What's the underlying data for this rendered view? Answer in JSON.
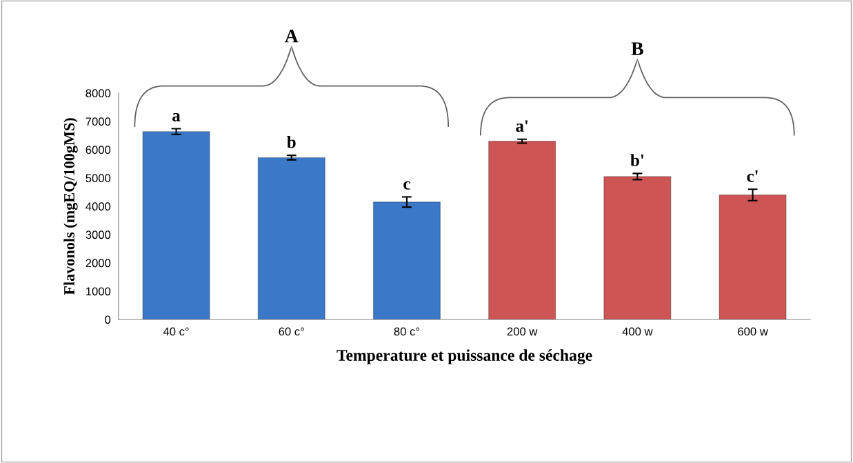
{
  "chart_data": {
    "type": "bar",
    "xlabel": "Temperature et puissance de séchage",
    "ylabel": "Flavonols (mgEQ/100gMS)",
    "categories": [
      "40 c°",
      "60 c°",
      "80 c°",
      "200 w",
      "400 w",
      "600 w"
    ],
    "values": [
      6640,
      5720,
      4150,
      6300,
      5050,
      4400
    ],
    "errors": [
      100,
      80,
      180,
      70,
      110,
      200
    ],
    "colors": [
      "#3c78c8",
      "#3c78c8",
      "#3c78c8",
      "#cd5555",
      "#cd5555",
      "#cd5555"
    ],
    "ylim": [
      0,
      8000
    ],
    "yticks": [
      0,
      1000,
      2000,
      3000,
      4000,
      5000,
      6000,
      7000,
      8000
    ],
    "grid": false,
    "legend": false,
    "annotations": [
      {
        "text": "a",
        "x": "40 c°",
        "y": 6740
      },
      {
        "text": "b",
        "x": "60 c°",
        "y": 5800
      },
      {
        "text": "c",
        "x": "80 c°",
        "y": 4330
      },
      {
        "text": "a'",
        "x": "200 w",
        "y": 6370
      },
      {
        "text": "b'",
        "x": "400 w",
        "y": 5160
      },
      {
        "text": "c'",
        "x": "600 w",
        "y": 4600
      },
      "A",
      "B"
    ]
  }
}
